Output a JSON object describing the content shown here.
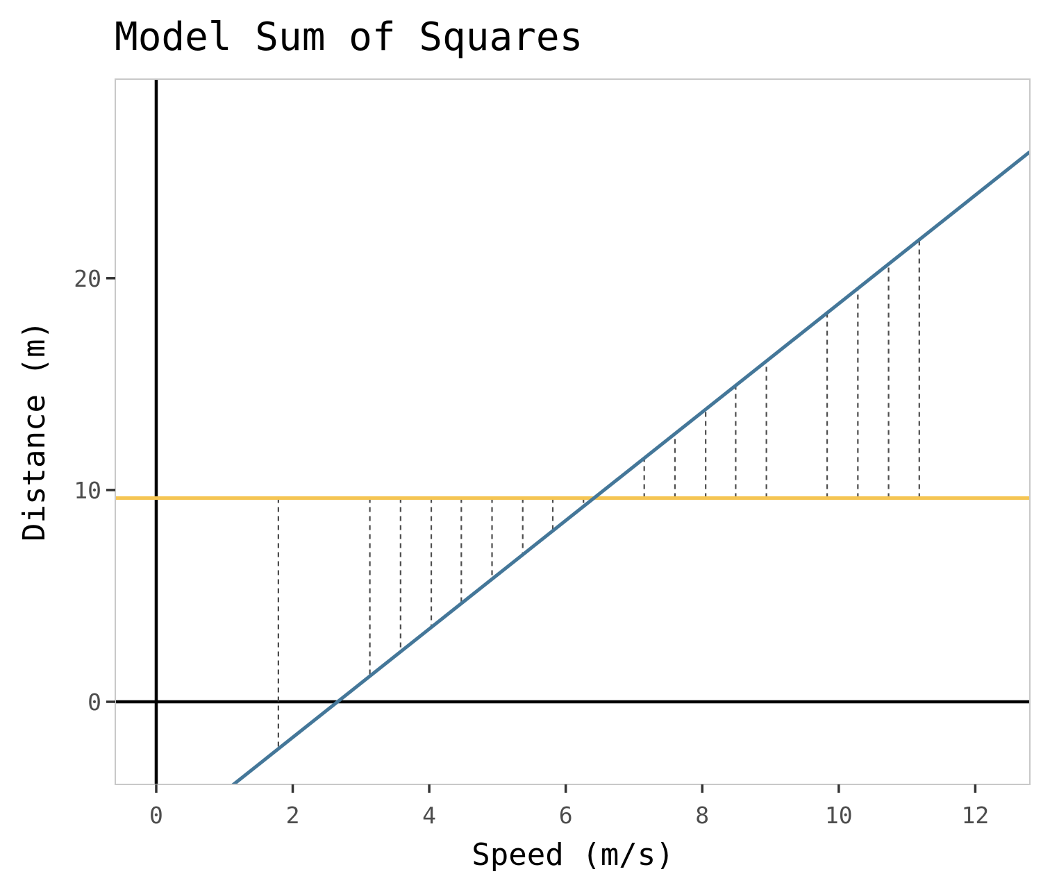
{
  "chart_data": {
    "type": "line",
    "title": "Model Sum of Squares",
    "xlabel": "Speed (m/s)",
    "ylabel": "Distance (m)",
    "xlim": [
      -0.6,
      12.8
    ],
    "ylim": [
      -3.9,
      29.4
    ],
    "x_ticks": [
      0,
      2,
      4,
      6,
      8,
      10,
      12
    ],
    "y_ticks": [
      0,
      10,
      20
    ],
    "grid": false,
    "zero_lines": true,
    "regression_line": {
      "intercept": -6.8,
      "slope": 2.56,
      "color": "#447799"
    },
    "mean_line": {
      "y": 9.62,
      "color": "#f5c553"
    },
    "segments_x": [
      1.79,
      3.13,
      3.58,
      4.03,
      4.47,
      4.92,
      5.37,
      5.81,
      6.26,
      7.15,
      7.6,
      8.05,
      8.49,
      8.94,
      9.83,
      10.28,
      10.73,
      11.18
    ],
    "segment_color": "#4d4d4d",
    "zero_line_color": "#000000",
    "panel_border_color": "#c8c8c8"
  }
}
